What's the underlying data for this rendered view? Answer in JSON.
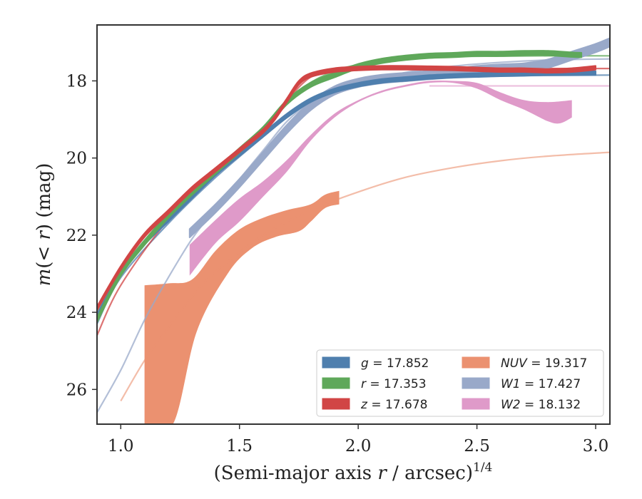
{
  "chart_data": {
    "type": "line",
    "title": "",
    "xlabel": "(Semi-major axis r / arcsec)",
    "xlabel_var": "r",
    "xlabel_pre": "(Semi-major axis ",
    "xlabel_post": " / arcsec)",
    "xlabel_sup": "1/4",
    "ylabel_pre": "m",
    "ylabel_mid": "(< ",
    "ylabel_var": "r",
    "ylabel_post": ") (mag)",
    "xlim": [
      0.9,
      3.06
    ],
    "ylim": [
      26.9,
      16.55
    ],
    "y_inverted": true,
    "x_ticks": [
      1.0,
      1.5,
      2.0,
      2.5,
      3.0
    ],
    "x_tick_labels": [
      "1.0",
      "1.5",
      "2.0",
      "2.5",
      "3.0"
    ],
    "y_ticks": [
      18,
      20,
      22,
      24,
      26
    ],
    "y_tick_labels": [
      "18",
      "20",
      "22",
      "24",
      "26"
    ],
    "grid": false,
    "legend_position": "lower-right",
    "legend_columns": 2,
    "series": [
      {
        "name": "g = 17.852",
        "legend_var": "g",
        "legend_value": "= 17.852",
        "color": "#4f7fae",
        "band": {
          "x": [
            0.9,
            1.0,
            1.1,
            1.2,
            1.3,
            1.4,
            1.5,
            1.6,
            1.7,
            1.8,
            1.9,
            2.0,
            2.1,
            2.2,
            2.3,
            2.4,
            2.5,
            2.6,
            2.7,
            2.8,
            2.9,
            3.0
          ],
          "y": [
            24.1,
            23.0,
            22.2,
            21.6,
            21.0,
            20.4,
            19.9,
            19.4,
            18.9,
            18.5,
            18.25,
            18.1,
            18.0,
            17.95,
            17.9,
            17.87,
            17.85,
            17.83,
            17.82,
            17.8,
            17.8,
            17.8
          ],
          "width": 0.1
        },
        "model": {
          "x": [
            0.9,
            1.0,
            1.2,
            1.4,
            1.6,
            1.7,
            1.8,
            1.9,
            2.0,
            2.2,
            2.4,
            2.6,
            2.8,
            3.06
          ],
          "y": [
            24.3,
            23.1,
            21.7,
            20.5,
            19.45,
            18.95,
            18.55,
            18.28,
            18.1,
            17.96,
            17.9,
            17.87,
            17.86,
            17.85
          ]
        }
      },
      {
        "name": "r = 17.353",
        "legend_var": "r",
        "legend_value": "= 17.353",
        "color": "#5fa85a",
        "band": {
          "x": [
            0.9,
            1.0,
            1.1,
            1.2,
            1.3,
            1.4,
            1.5,
            1.6,
            1.7,
            1.8,
            1.9,
            2.0,
            2.1,
            2.2,
            2.3,
            2.4,
            2.5,
            2.6,
            2.7,
            2.8,
            2.9,
            2.94
          ],
          "y": [
            24.2,
            23.0,
            22.2,
            21.5,
            20.9,
            20.35,
            19.8,
            19.25,
            18.55,
            18.1,
            17.85,
            17.62,
            17.48,
            17.4,
            17.35,
            17.33,
            17.3,
            17.3,
            17.28,
            17.28,
            17.32,
            17.33
          ],
          "width": 0.12
        },
        "model": {
          "x": [
            0.9,
            1.0,
            1.2,
            1.4,
            1.6,
            1.7,
            1.8,
            1.9,
            2.0,
            2.2,
            2.4,
            2.6,
            2.8,
            3.06
          ],
          "y": [
            24.0,
            22.9,
            21.45,
            20.35,
            19.2,
            18.6,
            18.05,
            17.75,
            17.58,
            17.42,
            17.37,
            17.36,
            17.35,
            17.35
          ]
        }
      },
      {
        "name": "z = 17.678",
        "legend_var": "z",
        "legend_value": "= 17.678",
        "color": "#d14545",
        "band": {
          "x": [
            0.9,
            1.0,
            1.1,
            1.2,
            1.3,
            1.4,
            1.5,
            1.6,
            1.65,
            1.7,
            1.75,
            1.8,
            1.9,
            2.0,
            2.1,
            2.2,
            2.3,
            2.4,
            2.5,
            2.6,
            2.7,
            2.8,
            2.9,
            3.0
          ],
          "y": [
            23.9,
            22.85,
            22.0,
            21.4,
            20.8,
            20.3,
            19.8,
            19.3,
            18.95,
            18.5,
            18.05,
            17.85,
            17.72,
            17.68,
            17.66,
            17.66,
            17.67,
            17.68,
            17.7,
            17.72,
            17.72,
            17.74,
            17.72,
            17.66
          ],
          "width": 0.1
        },
        "model": {
          "x": [
            0.9,
            1.0,
            1.2,
            1.4,
            1.6,
            1.7,
            1.8,
            1.9,
            2.0,
            2.2,
            2.4,
            2.6,
            2.8,
            3.06
          ],
          "y": [
            24.6,
            23.3,
            21.6,
            20.4,
            19.2,
            18.5,
            17.9,
            17.75,
            17.7,
            17.69,
            17.68,
            17.68,
            17.68,
            17.68
          ]
        }
      },
      {
        "name": "NUV = 19.317",
        "legend_var": "NUV",
        "legend_value": "= 19.317",
        "color": "#eb9170",
        "band_upper": {
          "x": [
            1.1,
            1.2,
            1.3,
            1.4,
            1.5,
            1.6,
            1.7,
            1.8,
            1.86,
            1.92
          ],
          "y": [
            23.3,
            23.25,
            23.15,
            22.4,
            21.85,
            21.55,
            21.35,
            21.2,
            20.95,
            20.85
          ]
        },
        "band_lower": {
          "x": [
            1.1,
            1.22,
            1.32,
            1.45,
            1.55,
            1.65,
            1.75,
            1.8,
            1.86,
            1.92
          ],
          "y": [
            26.9,
            26.9,
            24.5,
            23.0,
            22.35,
            22.05,
            21.9,
            21.65,
            21.3,
            21.2
          ]
        },
        "model": {
          "x": [
            1.0,
            1.1,
            1.2,
            1.3,
            1.4,
            1.6,
            1.8,
            2.0,
            2.2,
            2.4,
            2.6,
            2.8,
            3.06
          ],
          "y": [
            26.3,
            25.25,
            24.4,
            23.6,
            22.95,
            22.0,
            21.35,
            20.88,
            20.5,
            20.25,
            20.07,
            19.95,
            19.85
          ]
        }
      },
      {
        "name": "W1 = 17.427",
        "legend_var": "W1",
        "legend_value": "= 17.427",
        "color": "#99a9c9",
        "band": {
          "x": [
            1.29,
            1.4,
            1.5,
            1.6,
            1.7,
            1.8,
            1.9,
            2.0,
            2.1,
            2.2,
            2.3,
            2.4,
            2.5,
            2.6,
            2.7,
            2.8,
            2.9,
            3.0,
            3.06
          ],
          "y": [
            21.95,
            21.3,
            20.65,
            19.95,
            19.25,
            18.65,
            18.25,
            18.05,
            17.95,
            17.9,
            17.85,
            17.8,
            17.72,
            17.68,
            17.65,
            17.55,
            17.35,
            17.15,
            17.0
          ],
          "width": 0.22
        },
        "model": {
          "x": [
            0.9,
            1.0,
            1.1,
            1.2,
            1.3,
            1.4,
            1.5,
            1.6,
            1.7,
            1.8,
            1.9,
            2.0,
            2.2,
            2.4,
            2.6,
            2.8,
            3.06
          ],
          "y": [
            26.6,
            25.5,
            24.2,
            23.1,
            22.1,
            21.3,
            20.55,
            19.8,
            19.05,
            18.55,
            18.25,
            18.05,
            17.78,
            17.62,
            17.52,
            17.46,
            17.43
          ]
        }
      },
      {
        "name": "W2 = 18.132",
        "legend_var": "W2",
        "legend_value": "= 18.132",
        "color": "#df9ac9",
        "band_upper": {
          "x": [
            1.29,
            1.4,
            1.5,
            1.6,
            1.7,
            1.8,
            1.9,
            2.0,
            2.1,
            2.2,
            2.3,
            2.4,
            2.5,
            2.6,
            2.7,
            2.8,
            2.9
          ],
          "y": [
            22.25,
            21.6,
            21.05,
            20.6,
            20.05,
            19.4,
            18.85,
            18.5,
            18.25,
            18.1,
            18.0,
            18.0,
            18.05,
            18.3,
            18.5,
            18.55,
            18.5
          ]
        },
        "band_lower": {
          "x": [
            1.29,
            1.4,
            1.5,
            1.6,
            1.7,
            1.8,
            1.9,
            2.0,
            2.1,
            2.2,
            2.3,
            2.4,
            2.5,
            2.6,
            2.7,
            2.8,
            2.85,
            2.9
          ],
          "y": [
            23.05,
            22.2,
            21.65,
            21.0,
            20.35,
            19.55,
            18.95,
            18.55,
            18.3,
            18.15,
            18.05,
            18.05,
            18.2,
            18.5,
            18.75,
            19.05,
            19.1,
            18.95
          ]
        },
        "model": {
          "x": [
            2.3,
            2.5,
            2.7,
            2.9,
            3.06
          ],
          "y": [
            18.13,
            18.13,
            18.13,
            18.13,
            18.13
          ]
        }
      }
    ]
  }
}
